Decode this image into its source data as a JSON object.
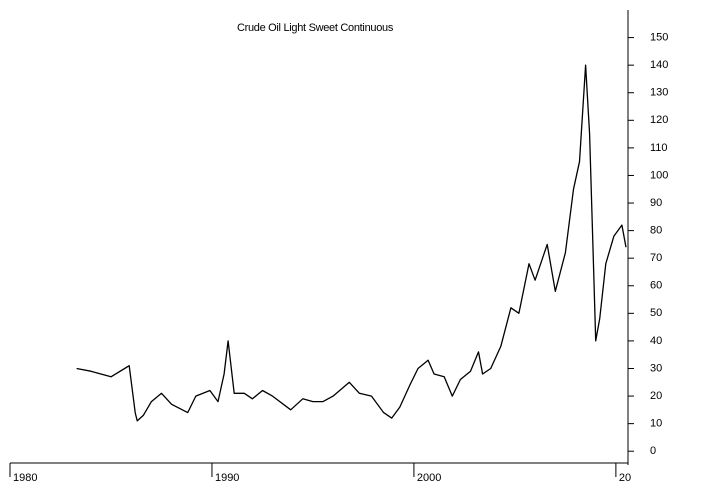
{
  "chart_data": {
    "type": "line",
    "title": "Crude Oil Light Sweet Continuous",
    "x": [
      1983.3,
      1984,
      1985,
      1985.9,
      1986.2,
      1986.3,
      1986.6,
      1987,
      1987.5,
      1988,
      1988.8,
      1989.2,
      1989.9,
      1990.3,
      1990.6,
      1990.8,
      1991.1,
      1991.6,
      1992,
      1992.5,
      1993,
      1993.9,
      1994.5,
      1995,
      1995.5,
      1996,
      1996.8,
      1997.3,
      1997.9,
      1998.5,
      1998.9,
      1999.3,
      1999.8,
      2000.2,
      2000.7,
      2001,
      2001.5,
      2001.9,
      2002.3,
      2002.8,
      2003.2,
      2003.4,
      2003.8,
      2004.3,
      2004.8,
      2005.2,
      2005.7,
      2006,
      2006.6,
      2007,
      2007.5,
      2007.9,
      2008.2,
      2008.5,
      2008.7,
      2008.9,
      2009,
      2009.2,
      2009.5,
      2009.9,
      2010.3,
      2010.5
    ],
    "series": [
      {
        "name": "Crude Oil Light Sweet Continuous",
        "color": "#000000",
        "values": [
          30,
          29,
          27,
          31,
          14,
          11,
          13,
          18,
          21,
          17,
          14,
          20,
          22,
          18,
          28,
          40,
          21,
          21,
          19,
          22,
          20,
          15,
          19,
          18,
          18,
          20,
          25,
          21,
          20,
          14,
          12,
          16,
          24,
          30,
          33,
          28,
          27,
          20,
          26,
          29,
          36,
          28,
          30,
          38,
          52,
          50,
          68,
          62,
          75,
          58,
          72,
          95,
          105,
          140,
          115,
          65,
          40,
          48,
          68,
          78,
          82,
          74
        ]
      }
    ],
    "xlim": [
      1980,
      2010.6
    ],
    "xticks": [
      1980,
      1990,
      2000,
      {
        "value": 2010,
        "label": "20"
      }
    ],
    "ylim": [
      -5,
      160
    ],
    "yticks": [
      0,
      10,
      20,
      30,
      40,
      50,
      60,
      70,
      80,
      90,
      100,
      110,
      120,
      130,
      140,
      150
    ],
    "grid": false
  }
}
